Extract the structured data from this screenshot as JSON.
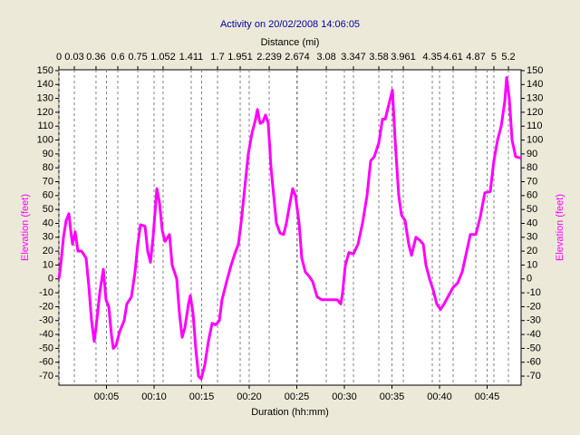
{
  "chart_data": {
    "type": "line",
    "title": "Activity on 20/02/2008 14:06:05",
    "xlabel": "Duration (hh:mm)",
    "ylabel": "Elevation (feet)",
    "y2label": "Elevation (feet)",
    "color": "#ff00ff",
    "xlim": [
      0,
      48.57
    ],
    "xticks": [
      {
        "value": 5,
        "label": "00:05"
      },
      {
        "value": 10,
        "label": "00:10"
      },
      {
        "value": 15,
        "label": "00:15"
      },
      {
        "value": 20,
        "label": "00:20"
      },
      {
        "value": 25,
        "label": "00:25"
      },
      {
        "value": 30,
        "label": "00:30"
      },
      {
        "value": 35,
        "label": "00:35"
      },
      {
        "value": 40,
        "label": "00:40"
      },
      {
        "value": 45,
        "label": "00:45"
      }
    ],
    "ylim": [
      -76.5,
      150.6
    ],
    "yticks": [
      -70,
      -60,
      -50,
      -40,
      -30,
      -20,
      -10,
      0,
      10,
      20,
      30,
      40,
      50,
      60,
      70,
      80,
      90,
      100,
      110,
      120,
      130,
      140,
      150
    ],
    "distance_axis": {
      "label": "Distance (mi)",
      "ticks": [
        0,
        0.03,
        0.36,
        0.6,
        0.75,
        1.052,
        1.411,
        1.7,
        1.951,
        2.239,
        2.674,
        3.08,
        3.347,
        3.58,
        3.961,
        4.35,
        4.61,
        4.87,
        5,
        5.2
      ],
      "tick_times": [
        0,
        1.62,
        3.9,
        6.19,
        8.29,
        10.95,
        13.9,
        16.67,
        19.05,
        22.1,
        25.05,
        28.1,
        30.95,
        33.62,
        36.19,
        39.24,
        41.43,
        43.81,
        45.71,
        47.24
      ]
    },
    "x": [
      0,
      0.19,
      0.48,
      0.76,
      1.05,
      1.24,
      1.43,
      1.71,
      2.0,
      2.38,
      2.86,
      3.14,
      3.43,
      3.71,
      3.9,
      4.29,
      4.67,
      4.95,
      5.24,
      5.52,
      5.71,
      6.0,
      6.38,
      6.86,
      7.14,
      7.62,
      8.0,
      8.29,
      8.57,
      9.05,
      9.33,
      9.62,
      9.9,
      10.29,
      10.57,
      10.86,
      11.14,
      11.62,
      11.9,
      12.38,
      12.67,
      12.95,
      13.24,
      13.62,
      13.81,
      14.1,
      14.38,
      14.67,
      14.95,
      15.33,
      15.71,
      16.1,
      16.48,
      16.86,
      17.14,
      17.62,
      18.1,
      18.48,
      18.86,
      19.14,
      19.52,
      19.9,
      20.29,
      20.67,
      20.86,
      21.14,
      21.43,
      21.71,
      22.0,
      22.29,
      22.57,
      22.86,
      23.24,
      23.62,
      23.9,
      24.29,
      24.57,
      24.86,
      25.24,
      25.52,
      25.9,
      26.29,
      26.67,
      27.14,
      27.62,
      28.57,
      29.24,
      29.62,
      29.81,
      30.1,
      30.48,
      30.95,
      31.43,
      31.9,
      32.38,
      32.76,
      33.14,
      33.62,
      34.0,
      34.29,
      34.76,
      35.05,
      35.33,
      35.71,
      36.0,
      36.38,
      36.76,
      37.05,
      37.52,
      37.9,
      38.29,
      38.57,
      38.95,
      39.33,
      39.71,
      40.1,
      40.48,
      40.95,
      41.43,
      41.9,
      42.38,
      42.86,
      43.24,
      43.81,
      44.29,
      44.76,
      45.33,
      45.71,
      46.1,
      46.48,
      46.86,
      47.05,
      47.33,
      47.62,
      48.0,
      48.57
    ],
    "values": [
      0,
      10,
      30,
      42,
      47,
      35,
      25,
      34,
      20,
      20,
      15,
      -5,
      -30,
      -45,
      -35,
      -10,
      7,
      -15,
      -20,
      -40,
      -50,
      -48,
      -38,
      -30,
      -18,
      -13,
      5,
      25,
      39,
      38,
      20,
      12,
      30,
      65,
      55,
      35,
      27,
      32,
      10,
      0,
      -25,
      -42,
      -35,
      -18,
      -12,
      -25,
      -50,
      -70,
      -72,
      -62,
      -45,
      -32,
      -33,
      -30,
      -15,
      -2,
      10,
      18,
      25,
      40,
      65,
      90,
      105,
      115,
      122,
      112,
      113,
      118,
      112,
      80,
      60,
      40,
      33,
      32,
      40,
      55,
      65,
      60,
      40,
      15,
      5,
      2,
      -2,
      -13,
      -15,
      -15,
      -15,
      -18,
      -10,
      10,
      19,
      18,
      25,
      40,
      60,
      85,
      88,
      98,
      115,
      115,
      128,
      136,
      100,
      60,
      46,
      42,
      25,
      17,
      30,
      28,
      25,
      10,
      0,
      -8,
      -18,
      -22,
      -18,
      -12,
      -6,
      -3,
      5,
      20,
      32,
      32,
      45,
      62,
      63,
      85,
      100,
      110,
      128,
      145,
      130,
      100,
      88,
      87
    ]
  }
}
